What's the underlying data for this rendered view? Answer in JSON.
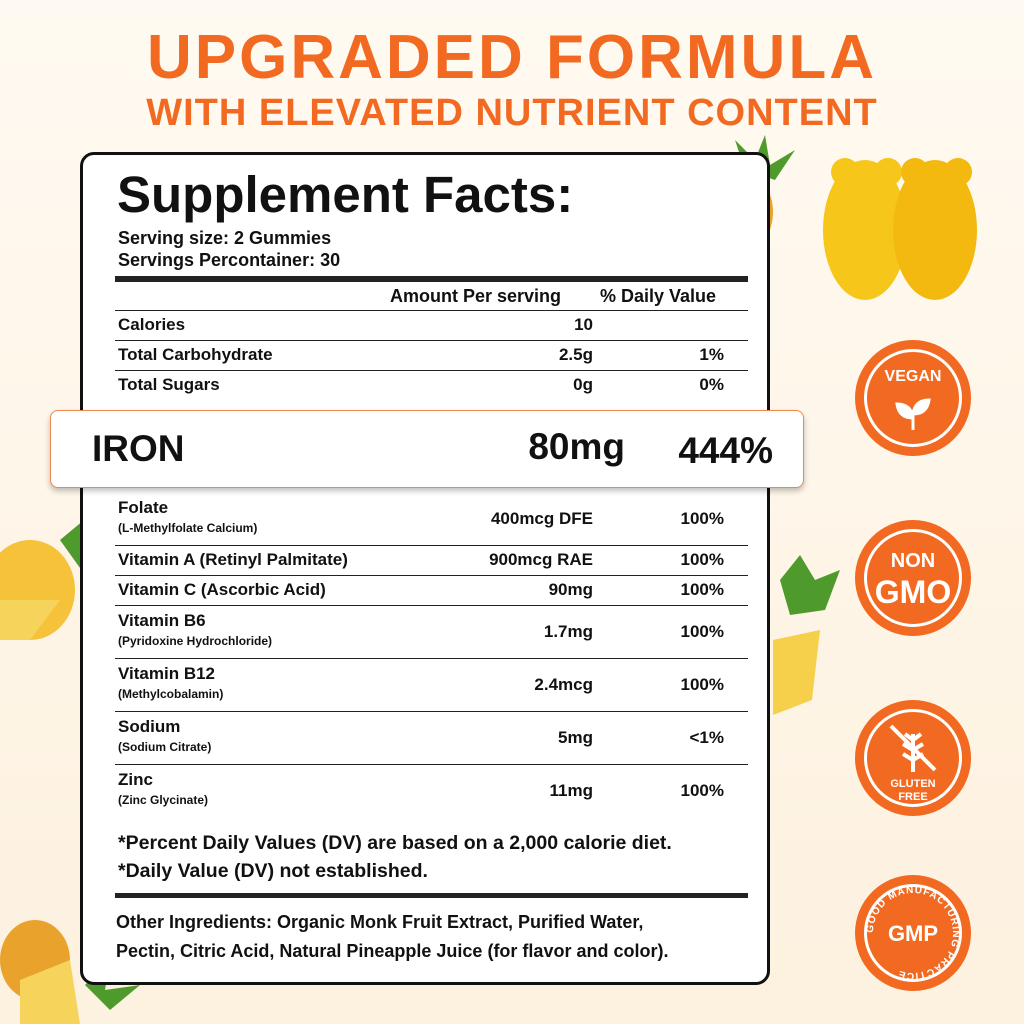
{
  "header": {
    "title": "UPGRADED FORMULA",
    "subtitle": "WITH ELEVATED NUTRIENT CONTENT"
  },
  "facts": {
    "title": "Supplement Facts:",
    "serving_size": "Serving size: 2 Gummies",
    "servings": "Servings Percontainer: 30",
    "columns": [
      "Amount Per serving",
      "% Daily Value"
    ],
    "top_rows": [
      {
        "name": "Calories",
        "amount": "10"
      },
      {
        "name": "Total Carbohydrate",
        "amount": "2.5g",
        "dv": "1%"
      },
      {
        "name": "Total Sugars",
        "amount": "0g",
        "dv": "0%"
      }
    ],
    "highlight": {
      "name": "IRON",
      "amount": "80mg",
      "dv": "444%"
    },
    "rows": [
      {
        "name": "Folate",
        "sub": "(L-Methylfolate Calcium)",
        "amount": "400mcg DFE",
        "dv": "100%"
      },
      {
        "name": "Vitamin A (Retinyl Palmitate)",
        "amount": "900mcg RAE",
        "dv": "100%"
      },
      {
        "name": "Vitamin C (Ascorbic Acid)",
        "amount": "90mg",
        "dv": "100%"
      },
      {
        "name": "Vitamin B6",
        "sub": "(Pyridoxine Hydrochloride)",
        "amount": "1.7mg",
        "dv": "100%"
      },
      {
        "name": "Vitamin B12",
        "sub": "(Methylcobalamin)",
        "amount": "2.4mcg",
        "dv": "100%"
      },
      {
        "name": "Sodium",
        "sub": "(Sodium Citrate)",
        "amount": "5mg",
        "dv": "<1%"
      },
      {
        "name": "Zinc",
        "sub": "(Zinc Glycinate)",
        "amount": "11mg",
        "dv": "100%"
      }
    ],
    "footnotes": [
      "*Percent Daily Values (DV) are based on a 2,000 calorie diet.",
      "*Daily Value (DV) not established."
    ],
    "other_ingredients": [
      "Other Ingredients: Organic Monk Fruit Extract, Purified Water,",
      "Pectin, Citric Acid, Natural Pineapple Juice (for flavor and color)."
    ]
  },
  "badges": {
    "vegan": "VEGAN",
    "non": "NON",
    "gmo": "GMO",
    "gluten": "GLUTEN",
    "free": "FREE",
    "gmp": "GMP",
    "gmp_ring": "GOOD MANUFACTURING PRACTICE"
  }
}
